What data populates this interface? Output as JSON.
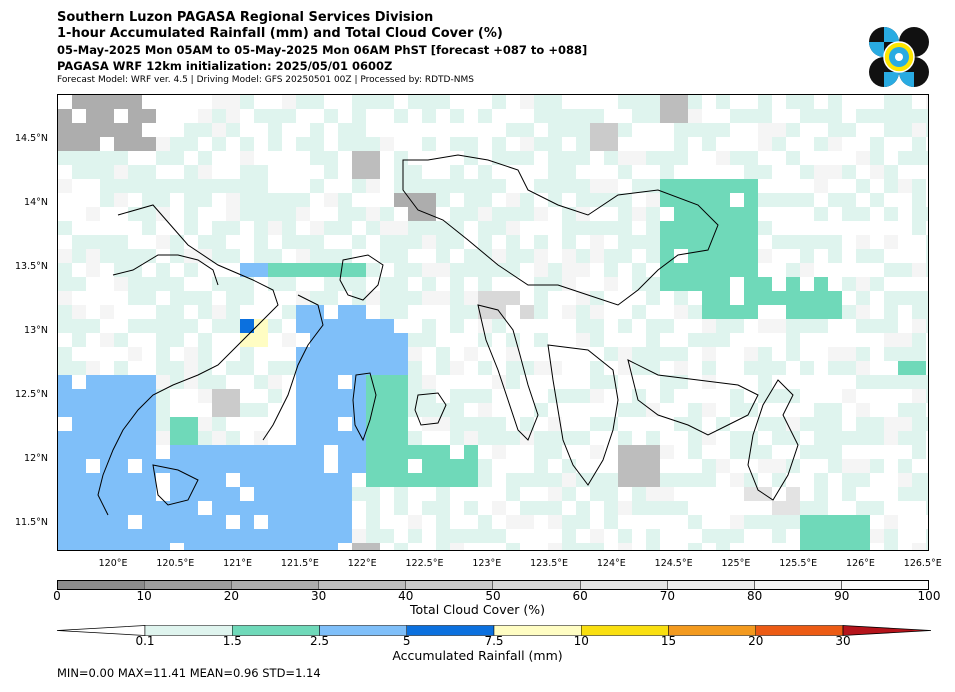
{
  "header": {
    "title": "Southern Luzon PAGASA Regional Services Division",
    "subtitle1": "1-hour Accumulated Rainfall (mm) and Total Cloud Cover (%)",
    "subtitle2": "05-May-2025 Mon 05AM to 05-May-2025 Mon 06AM PhST [forecast +087 to +088]",
    "subtitle3": "PAGASA WRF 12km initialization: 2025/05/01 0600Z",
    "subtitle4": "Forecast Model: WRF ver. 4.5 | Driving Model: GFS 20250501 00Z | Processed by: RDTD-NMS"
  },
  "logo": {
    "name": "PAGASA logo",
    "colors": [
      "#111111",
      "#29abe2",
      "#ffe600"
    ]
  },
  "map": {
    "extent": {
      "lon": [
        119.55,
        126.55
      ],
      "lat": [
        11.28,
        14.85
      ]
    },
    "lat_ticks": [
      "14.5°N",
      "14°N",
      "13.5°N",
      "13°N",
      "12.5°N",
      "12°N",
      "11.5°N"
    ],
    "lon_ticks": [
      "120°E",
      "120.5°E",
      "121°E",
      "121.5°E",
      "122°E",
      "122.5°E",
      "123°E",
      "123.5°E",
      "124°E",
      "124.5°E",
      "125°E",
      "125.5°E",
      "126°E",
      "126.5°E"
    ]
  },
  "cloud_colorbar": {
    "label": "Total Cloud Cover (%)",
    "ticks": [
      "0",
      "10",
      "20",
      "30",
      "40",
      "50",
      "60",
      "70",
      "80",
      "90",
      "100"
    ],
    "colors": [
      "#8c8c8c",
      "#9d9d9d",
      "#adadad",
      "#bdbdbd",
      "#cbcbcb",
      "#d8d8d8",
      "#e3e3e3",
      "#ececec",
      "#f5f5f5",
      "#fbfbfb"
    ]
  },
  "rain_colorbar": {
    "label": "Accumulated Rainfall (mm)",
    "ticks": [
      "0.1",
      "1.5",
      "2.5",
      "5",
      "7.5",
      "10",
      "15",
      "20",
      "30"
    ],
    "colors": [
      "#dff4ee",
      "#6fd9b9",
      "#7fbff9",
      "#0b70de",
      "#fffdc3",
      "#f9df10",
      "#f39a1f",
      "#ec5b14",
      "#b5141b"
    ]
  },
  "stats": {
    "text": "MIN=0.00   MAX=11.41   MEAN=0.96   STD=1.14"
  }
}
